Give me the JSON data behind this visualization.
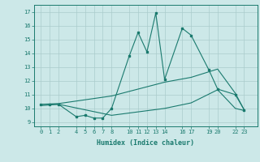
{
  "xlabel": "Humidex (Indice chaleur)",
  "background_color": "#cce8e8",
  "grid_color": "#aacccc",
  "line_color": "#1a7a6e",
  "xlim": [
    -0.8,
    24.5
  ],
  "ylim": [
    8.7,
    17.5
  ],
  "xticks": [
    0,
    1,
    2,
    4,
    5,
    6,
    7,
    8,
    10,
    11,
    12,
    13,
    14,
    16,
    17,
    19,
    20,
    22,
    23
  ],
  "yticks": [
    9,
    10,
    11,
    12,
    13,
    14,
    15,
    16,
    17
  ],
  "line1_x": [
    0,
    1,
    2,
    4,
    5,
    6,
    7,
    8,
    10,
    11,
    12,
    13,
    14,
    16,
    17,
    19,
    20,
    22,
    23
  ],
  "line1_y": [
    10.3,
    10.3,
    10.3,
    9.4,
    9.5,
    9.3,
    9.3,
    10.0,
    13.8,
    15.5,
    14.1,
    16.9,
    12.1,
    15.8,
    15.3,
    12.8,
    11.4,
    11.0,
    9.9
  ],
  "line2_x": [
    0,
    2,
    8,
    14,
    17,
    20,
    22,
    23
  ],
  "line2_y": [
    10.3,
    10.35,
    10.9,
    11.9,
    12.25,
    12.85,
    11.1,
    9.9
  ],
  "line3_x": [
    0,
    2,
    8,
    14,
    17,
    20,
    22,
    23
  ],
  "line3_y": [
    10.2,
    10.3,
    9.5,
    10.0,
    10.4,
    11.35,
    10.0,
    9.85
  ]
}
